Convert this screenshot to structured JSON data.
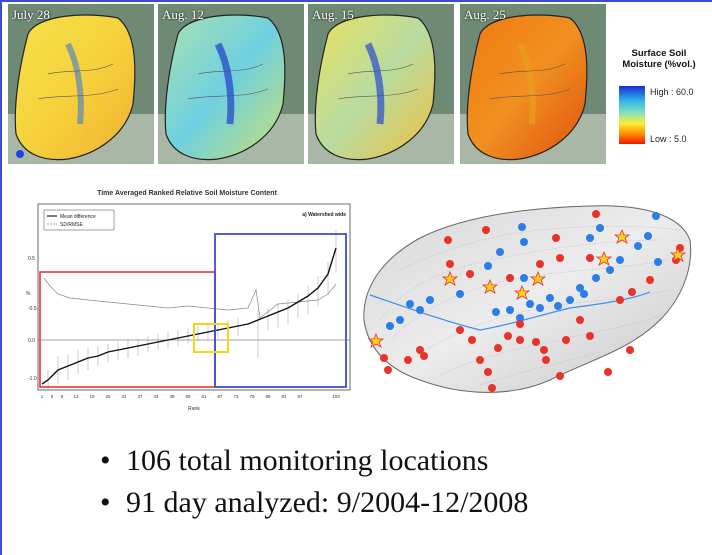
{
  "panels": [
    {
      "date": "July 28",
      "palette": "yellow"
    },
    {
      "date": "Aug. 12",
      "palette": "cyan"
    },
    {
      "date": "Aug. 15",
      "palette": "mixed"
    },
    {
      "date": "Aug. 25",
      "palette": "orange"
    }
  ],
  "legend": {
    "title_line1": "Surface Soil",
    "title_line2": "Moisture (%vol.)",
    "high": "High : 60.0",
    "low": "Low : 5.0",
    "colors": [
      "#1a2bd8",
      "#2fb6ea",
      "#7fe0c0",
      "#ffee33",
      "#ff9000",
      "#ee1800"
    ]
  },
  "chart": {
    "title": "Time Averaged Ranked Relative Soil Moisture Content",
    "panel_label": "a) Watershed wide",
    "legend_mean": "Mean difference",
    "legend_sd": "SD/RMSE",
    "xlabel": "Rank",
    "ylabel": "%",
    "xticks": [
      "1",
      "5",
      "9",
      "13",
      "19",
      "25",
      "31",
      "37",
      "43",
      "49",
      "55",
      "61",
      "67",
      "73",
      "79",
      "85",
      "91",
      "97",
      "103"
    ],
    "yticks": [
      "0.5",
      "0.0",
      "-0.5",
      "-1.0"
    ]
  },
  "bullets": [
    "106 total monitoring locations",
    "91 day analyzed: 9/2004-12/2008"
  ],
  "marker_colors": {
    "wet": "#2b7de9",
    "dry": "#e8322a",
    "star": "#ffd21a"
  }
}
